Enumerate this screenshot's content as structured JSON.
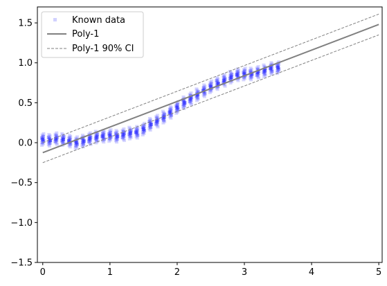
{
  "chart_data": {
    "type": "scatter",
    "title": "",
    "xlabel": "",
    "ylabel": "",
    "xlim": [
      -0.08,
      5.05
    ],
    "ylim": [
      -1.5,
      1.7
    ],
    "grid": false,
    "legend_position": "top-left",
    "x_ticks": [
      0,
      1,
      2,
      3,
      4,
      5
    ],
    "y_ticks": [
      -1.5,
      -1.0,
      -0.5,
      0.0,
      0.5,
      1.0,
      1.5
    ],
    "x_tick_labels": [
      "0",
      "1",
      "2",
      "3",
      "4",
      "5"
    ],
    "y_tick_labels": [
      "−1.5",
      "−1.0",
      "−0.5",
      "0.0",
      "0.5",
      "1.0",
      "1.5"
    ],
    "series": [
      {
        "name": "Known data",
        "kind": "scatter",
        "color": "#0000ff",
        "x_start": 0.0,
        "x_end": 3.5,
        "x_count": 36,
        "y_at_x": [
          0.04,
          0.03,
          0.05,
          0.04,
          0.02,
          0.0,
          0.02,
          0.05,
          0.07,
          0.08,
          0.09,
          0.08,
          0.1,
          0.12,
          0.13,
          0.17,
          0.23,
          0.27,
          0.32,
          0.38,
          0.44,
          0.5,
          0.55,
          0.6,
          0.65,
          0.7,
          0.74,
          0.78,
          0.82,
          0.85,
          0.86,
          0.86,
          0.88,
          0.9,
          0.93,
          0.94
        ],
        "band_halfwidth": 0.07
      },
      {
        "name": "Poly-1",
        "kind": "line",
        "color": "#808080",
        "x": [
          0,
          5
        ],
        "y": [
          -0.125,
          1.48
        ]
      },
      {
        "name": "Poly-1 90% CI",
        "kind": "line-dashed",
        "color": "#808080",
        "upper": {
          "x": [
            0,
            5
          ],
          "y": [
            0.0,
            1.61
          ]
        },
        "lower": {
          "x": [
            0,
            5
          ],
          "y": [
            -0.25,
            1.35
          ]
        }
      }
    ]
  },
  "colors": {
    "scatter": "#0000ff",
    "fit": "#808080",
    "ci": "#808080",
    "axis": "#000000"
  }
}
